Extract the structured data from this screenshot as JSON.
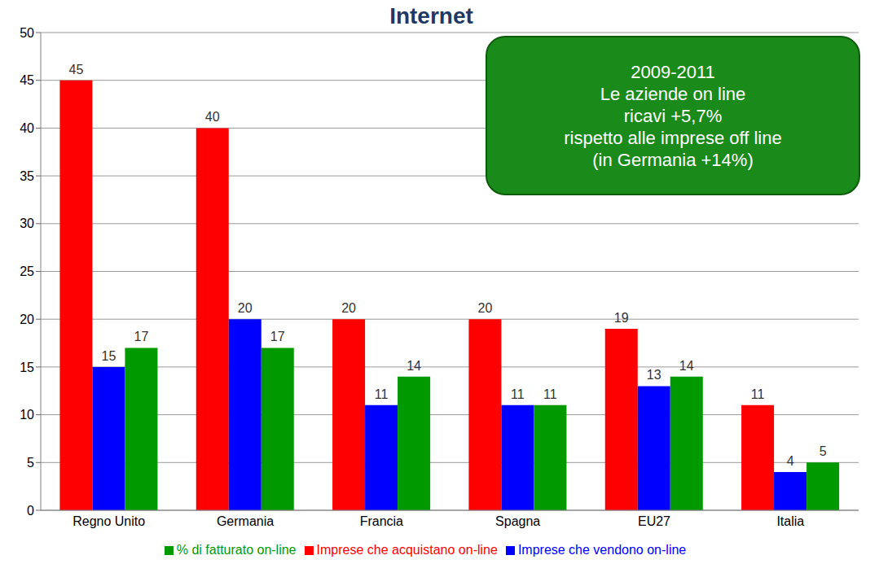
{
  "chart_data": {
    "type": "bar",
    "title": "Internet",
    "categories": [
      "Regno Unito",
      "Germania",
      "Francia",
      "Spagna",
      "EU27",
      "Italia"
    ],
    "series": [
      {
        "name": "Imprese che acquistano on-line",
        "color": "#ff0000",
        "values": [
          45,
          40,
          20,
          20,
          19,
          11
        ]
      },
      {
        "name": "Imprese che vendono on-line",
        "color": "#0000ff",
        "values": [
          15,
          20,
          11,
          11,
          13,
          4
        ]
      },
      {
        "name": "% di fatturato on-line",
        "color": "#009900",
        "values": [
          17,
          17,
          14,
          11,
          14,
          5
        ]
      }
    ],
    "ylim": [
      0,
      50
    ],
    "yticks": [
      0,
      5,
      10,
      15,
      20,
      25,
      30,
      35,
      40,
      45,
      50
    ],
    "grid": true,
    "legend": "bottom",
    "data_labels": true,
    "annotations": [
      "2009-2011",
      "Le aziende on line",
      "ricavi +5,7%",
      "rispetto alle imprese off line",
      "(in Germania +14%)"
    ]
  }
}
